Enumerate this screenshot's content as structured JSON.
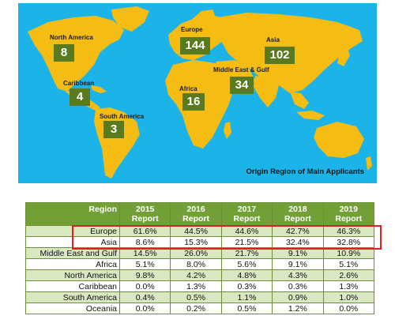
{
  "map": {
    "caption": "Origin Region of Main Applicants",
    "regions": [
      {
        "label": "North America",
        "count": "8"
      },
      {
        "label": "Europe",
        "count": "144"
      },
      {
        "label": "Asia",
        "count": "102"
      },
      {
        "label": "Caribbean",
        "count": "4"
      },
      {
        "label": "Middle East & Gulf",
        "count": "34"
      },
      {
        "label": "Africa",
        "count": "16"
      },
      {
        "label": "South America",
        "count": "3"
      }
    ],
    "colors": {
      "ocean": "#1bb3e8",
      "land": "#f5bd14",
      "box": "#5a7a1f"
    }
  },
  "table": {
    "headers": [
      "Region",
      "2015 Report",
      "2016 Report",
      "2017 Report",
      "2018 Report",
      "2019 Report"
    ],
    "rows": [
      [
        "Europe",
        "61.6%",
        "44.5%",
        "44.6%",
        "42.7%",
        "46.3%"
      ],
      [
        "Asia",
        "8.6%",
        "15.3%",
        "21.5%",
        "32.4%",
        "32.8%"
      ],
      [
        "Middle East and Gulf",
        "14.5%",
        "26.0%",
        "21.7%",
        "9.1%",
        "10.9%"
      ],
      [
        "Africa",
        "5.1%",
        "8.0%",
        "5.6%",
        "9.1%",
        "5.1%"
      ],
      [
        "North America",
        "9.8%",
        "4.2%",
        "4.8%",
        "4.3%",
        "2.6%"
      ],
      [
        "Caribbean",
        "0.0%",
        "1.3%",
        "0.3%",
        "0.3%",
        "1.3%"
      ],
      [
        "South America",
        "0.4%",
        "0.5%",
        "1.1%",
        "0.9%",
        "1.0%"
      ],
      [
        "Oceania",
        "0.0%",
        "0.2%",
        "0.5%",
        "1.2%",
        "0.0%"
      ]
    ],
    "colors": {
      "header": "#73a036",
      "band": "#d9e8c1",
      "highlight": "#e0201f"
    }
  }
}
